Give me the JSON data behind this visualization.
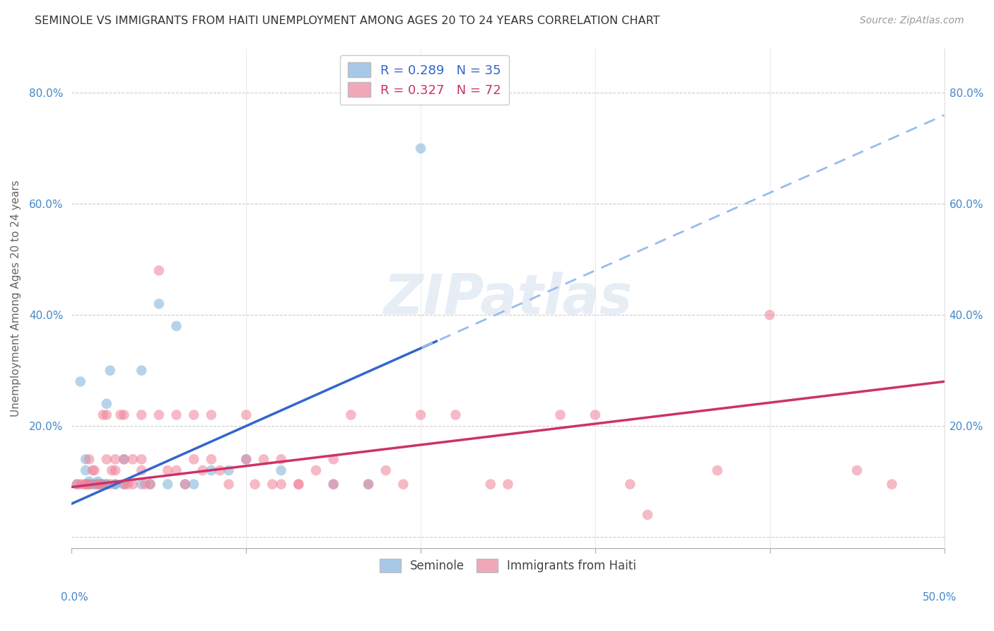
{
  "title": "SEMINOLE VS IMMIGRANTS FROM HAITI UNEMPLOYMENT AMONG AGES 20 TO 24 YEARS CORRELATION CHART",
  "source": "Source: ZipAtlas.com",
  "ylabel": "Unemployment Among Ages 20 to 24 years",
  "ytick_vals": [
    0.0,
    0.2,
    0.4,
    0.6,
    0.8
  ],
  "ytick_labels": [
    "",
    "20.0%",
    "40.0%",
    "60.0%",
    "80.0%"
  ],
  "xtick_vals": [
    0.0,
    0.1,
    0.2,
    0.3,
    0.4,
    0.5
  ],
  "xtick_labels_left": "0.0%",
  "xtick_labels_right": "50.0%",
  "xlim": [
    0.0,
    0.5
  ],
  "ylim": [
    -0.02,
    0.88
  ],
  "seminole_color": "#7ab0d8",
  "haiti_color": "#f08098",
  "seminole_line_color": "#3366cc",
  "haiti_line_color": "#cc3366",
  "watermark": "ZIPatlas",
  "seminole_points": [
    [
      0.003,
      0.095
    ],
    [
      0.005,
      0.28
    ],
    [
      0.008,
      0.14
    ],
    [
      0.008,
      0.12
    ],
    [
      0.01,
      0.095
    ],
    [
      0.01,
      0.1
    ],
    [
      0.012,
      0.095
    ],
    [
      0.013,
      0.095
    ],
    [
      0.015,
      0.095
    ],
    [
      0.015,
      0.1
    ],
    [
      0.017,
      0.095
    ],
    [
      0.018,
      0.095
    ],
    [
      0.02,
      0.095
    ],
    [
      0.02,
      0.095
    ],
    [
      0.02,
      0.24
    ],
    [
      0.022,
      0.3
    ],
    [
      0.025,
      0.095
    ],
    [
      0.025,
      0.095
    ],
    [
      0.03,
      0.14
    ],
    [
      0.03,
      0.095
    ],
    [
      0.04,
      0.3
    ],
    [
      0.04,
      0.095
    ],
    [
      0.045,
      0.095
    ],
    [
      0.05,
      0.42
    ],
    [
      0.055,
      0.095
    ],
    [
      0.06,
      0.38
    ],
    [
      0.065,
      0.095
    ],
    [
      0.07,
      0.095
    ],
    [
      0.08,
      0.12
    ],
    [
      0.09,
      0.12
    ],
    [
      0.1,
      0.14
    ],
    [
      0.12,
      0.12
    ],
    [
      0.15,
      0.095
    ],
    [
      0.17,
      0.095
    ],
    [
      0.2,
      0.7
    ]
  ],
  "haiti_points": [
    [
      0.003,
      0.095
    ],
    [
      0.005,
      0.095
    ],
    [
      0.007,
      0.095
    ],
    [
      0.008,
      0.095
    ],
    [
      0.009,
      0.095
    ],
    [
      0.01,
      0.14
    ],
    [
      0.01,
      0.095
    ],
    [
      0.012,
      0.12
    ],
    [
      0.013,
      0.12
    ],
    [
      0.015,
      0.095
    ],
    [
      0.015,
      0.095
    ],
    [
      0.017,
      0.095
    ],
    [
      0.018,
      0.22
    ],
    [
      0.02,
      0.22
    ],
    [
      0.02,
      0.14
    ],
    [
      0.022,
      0.095
    ],
    [
      0.023,
      0.12
    ],
    [
      0.025,
      0.14
    ],
    [
      0.025,
      0.12
    ],
    [
      0.028,
      0.22
    ],
    [
      0.03,
      0.14
    ],
    [
      0.03,
      0.22
    ],
    [
      0.03,
      0.095
    ],
    [
      0.032,
      0.095
    ],
    [
      0.035,
      0.14
    ],
    [
      0.035,
      0.095
    ],
    [
      0.04,
      0.22
    ],
    [
      0.04,
      0.14
    ],
    [
      0.04,
      0.12
    ],
    [
      0.042,
      0.095
    ],
    [
      0.045,
      0.095
    ],
    [
      0.05,
      0.48
    ],
    [
      0.05,
      0.22
    ],
    [
      0.055,
      0.12
    ],
    [
      0.06,
      0.22
    ],
    [
      0.06,
      0.12
    ],
    [
      0.065,
      0.095
    ],
    [
      0.07,
      0.22
    ],
    [
      0.07,
      0.14
    ],
    [
      0.075,
      0.12
    ],
    [
      0.08,
      0.22
    ],
    [
      0.08,
      0.14
    ],
    [
      0.085,
      0.12
    ],
    [
      0.09,
      0.095
    ],
    [
      0.1,
      0.22
    ],
    [
      0.1,
      0.14
    ],
    [
      0.105,
      0.095
    ],
    [
      0.11,
      0.14
    ],
    [
      0.115,
      0.095
    ],
    [
      0.12,
      0.14
    ],
    [
      0.12,
      0.095
    ],
    [
      0.13,
      0.095
    ],
    [
      0.13,
      0.095
    ],
    [
      0.14,
      0.12
    ],
    [
      0.15,
      0.14
    ],
    [
      0.15,
      0.095
    ],
    [
      0.16,
      0.22
    ],
    [
      0.17,
      0.095
    ],
    [
      0.18,
      0.12
    ],
    [
      0.19,
      0.095
    ],
    [
      0.2,
      0.22
    ],
    [
      0.22,
      0.22
    ],
    [
      0.24,
      0.095
    ],
    [
      0.25,
      0.095
    ],
    [
      0.28,
      0.22
    ],
    [
      0.3,
      0.22
    ],
    [
      0.32,
      0.095
    ],
    [
      0.33,
      0.04
    ],
    [
      0.37,
      0.12
    ],
    [
      0.4,
      0.4
    ],
    [
      0.45,
      0.12
    ],
    [
      0.47,
      0.095
    ]
  ]
}
